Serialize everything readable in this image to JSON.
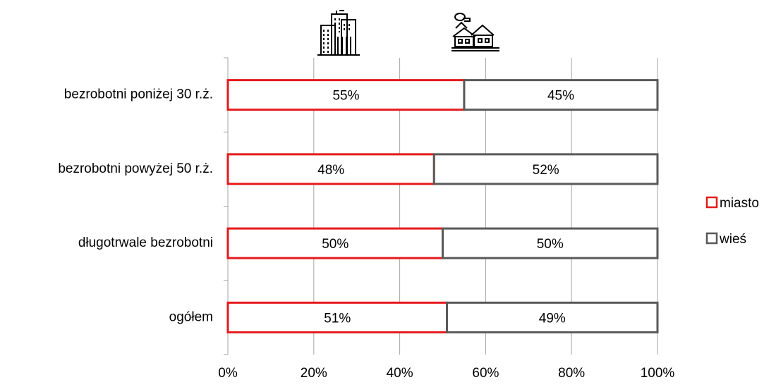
{
  "chart_data": {
    "type": "bar",
    "stacked": true,
    "orientation": "horizontal",
    "categories": [
      "bezrobotni poniżej 30 r.ż.",
      "bezrobotni powyżej 50 r.ż.",
      "długotrwale bezrobotni",
      "ogółem"
    ],
    "series": [
      {
        "name": "miasto",
        "values": [
          55,
          48,
          50,
          51
        ],
        "labels": [
          "55%",
          "48%",
          "50%",
          "51%"
        ],
        "color": "#e41a1c"
      },
      {
        "name": "wieś",
        "values": [
          45,
          52,
          50,
          49
        ],
        "labels": [
          "45%",
          "52%",
          "50%",
          "49%"
        ],
        "color": "#595959"
      }
    ],
    "xlim": [
      0,
      100
    ],
    "xticks": [
      0,
      20,
      40,
      60,
      80,
      100
    ],
    "xtick_labels": [
      "0%",
      "20%",
      "40%",
      "60%",
      "80%",
      "100%"
    ],
    "grid": "vertical",
    "legend_position": "right",
    "icons": [
      "city-buildings-icon",
      "village-houses-icon"
    ]
  }
}
